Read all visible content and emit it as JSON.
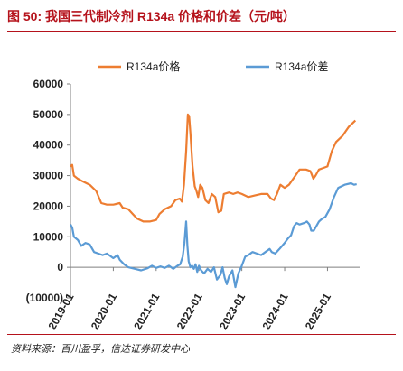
{
  "figure": {
    "title": "图 50:  我国三代制冷剂 R134a 价格和价差（元/吨）",
    "source": "资料来源：百川盈孚，信达证券研发中心"
  },
  "chart_data": {
    "type": "line",
    "ylabel": "",
    "xlabel": "",
    "ylim": [
      -10000,
      60000
    ],
    "y_ticks": [
      "60000",
      "50000",
      "40000",
      "30000",
      "20000",
      "10000",
      "0",
      "(10000)"
    ],
    "y_tick_values": [
      60000,
      50000,
      40000,
      30000,
      20000,
      10000,
      0,
      -10000
    ],
    "x_ticks": [
      "2019-01",
      "2020-01",
      "2021-01",
      "2022-01",
      "2023-01",
      "2024-01",
      "2025-01"
    ],
    "x_tick_values": [
      2019.0,
      2020.0,
      2021.0,
      2022.0,
      2023.0,
      2024.0,
      2025.0
    ],
    "xlim": [
      2019.0,
      2025.75
    ],
    "negative_label_color": "#e00000",
    "legend_position": "top",
    "series": [
      {
        "name": "R134a价格",
        "color": "#ed7d31",
        "points": [
          [
            2019.0,
            33000
          ],
          [
            2019.04,
            33500
          ],
          [
            2019.08,
            30000
          ],
          [
            2019.17,
            29000
          ],
          [
            2019.3,
            28000
          ],
          [
            2019.45,
            27000
          ],
          [
            2019.6,
            25000
          ],
          [
            2019.72,
            21000
          ],
          [
            2019.85,
            20500
          ],
          [
            2020.0,
            20500
          ],
          [
            2020.15,
            21000
          ],
          [
            2020.22,
            19500
          ],
          [
            2020.35,
            19000
          ],
          [
            2020.45,
            17500
          ],
          [
            2020.55,
            16000
          ],
          [
            2020.7,
            15000
          ],
          [
            2020.85,
            15000
          ],
          [
            2021.0,
            15500
          ],
          [
            2021.08,
            17500
          ],
          [
            2021.2,
            19000
          ],
          [
            2021.35,
            20000
          ],
          [
            2021.45,
            22000
          ],
          [
            2021.55,
            22500
          ],
          [
            2021.6,
            21500
          ],
          [
            2021.65,
            27000
          ],
          [
            2021.7,
            38000
          ],
          [
            2021.74,
            50000
          ],
          [
            2021.77,
            49500
          ],
          [
            2021.8,
            44000
          ],
          [
            2021.85,
            33000
          ],
          [
            2021.9,
            26500
          ],
          [
            2021.94,
            25000
          ],
          [
            2021.98,
            23000
          ],
          [
            2022.03,
            27000
          ],
          [
            2022.08,
            26000
          ],
          [
            2022.15,
            22000
          ],
          [
            2022.22,
            21000
          ],
          [
            2022.3,
            24000
          ],
          [
            2022.38,
            23000
          ],
          [
            2022.45,
            18000
          ],
          [
            2022.52,
            18500
          ],
          [
            2022.58,
            24000
          ],
          [
            2022.7,
            24500
          ],
          [
            2022.8,
            24000
          ],
          [
            2022.9,
            24500
          ],
          [
            2023.0,
            24000
          ],
          [
            2023.15,
            23000
          ],
          [
            2023.3,
            23500
          ],
          [
            2023.45,
            24000
          ],
          [
            2023.6,
            24000
          ],
          [
            2023.68,
            22500
          ],
          [
            2023.75,
            22000
          ],
          [
            2023.82,
            24000
          ],
          [
            2023.9,
            27000
          ],
          [
            2024.0,
            26000
          ],
          [
            2024.1,
            27000
          ],
          [
            2024.25,
            30000
          ],
          [
            2024.35,
            32000
          ],
          [
            2024.5,
            32000
          ],
          [
            2024.6,
            31500
          ],
          [
            2024.67,
            29000
          ],
          [
            2024.72,
            30000
          ],
          [
            2024.8,
            32000
          ],
          [
            2024.9,
            32500
          ],
          [
            2025.0,
            33000
          ],
          [
            2025.1,
            38000
          ],
          [
            2025.2,
            41000
          ],
          [
            2025.35,
            43000
          ],
          [
            2025.5,
            46000
          ],
          [
            2025.65,
            48000
          ]
        ]
      },
      {
        "name": "R134a价差",
        "color": "#5b9bd5",
        "points": [
          [
            2019.0,
            14000
          ],
          [
            2019.04,
            13000
          ],
          [
            2019.08,
            10000
          ],
          [
            2019.17,
            9000
          ],
          [
            2019.25,
            7000
          ],
          [
            2019.35,
            8000
          ],
          [
            2019.45,
            7500
          ],
          [
            2019.55,
            5000
          ],
          [
            2019.65,
            4500
          ],
          [
            2019.75,
            4000
          ],
          [
            2019.85,
            4500
          ],
          [
            2020.0,
            3000
          ],
          [
            2020.1,
            4000
          ],
          [
            2020.15,
            2500
          ],
          [
            2020.25,
            1000
          ],
          [
            2020.35,
            0
          ],
          [
            2020.5,
            -500
          ],
          [
            2020.65,
            -1000
          ],
          [
            2020.8,
            -300
          ],
          [
            2020.9,
            500
          ],
          [
            2021.0,
            -200
          ],
          [
            2021.1,
            300
          ],
          [
            2021.2,
            -200
          ],
          [
            2021.3,
            500
          ],
          [
            2021.4,
            -500
          ],
          [
            2021.5,
            500
          ],
          [
            2021.56,
            1000
          ],
          [
            2021.62,
            3500
          ],
          [
            2021.66,
            8000
          ],
          [
            2021.7,
            15000
          ],
          [
            2021.73,
            7000
          ],
          [
            2021.76,
            2000
          ],
          [
            2021.8,
            0
          ],
          [
            2021.84,
            500
          ],
          [
            2021.88,
            -500
          ],
          [
            2021.92,
            1000
          ],
          [
            2021.96,
            -1500
          ],
          [
            2022.0,
            500
          ],
          [
            2022.05,
            -1000
          ],
          [
            2022.12,
            -2000
          ],
          [
            2022.2,
            -500
          ],
          [
            2022.28,
            -1500
          ],
          [
            2022.35,
            0
          ],
          [
            2022.42,
            -4000
          ],
          [
            2022.5,
            -2500
          ],
          [
            2022.55,
            0
          ],
          [
            2022.6,
            -3500
          ],
          [
            2022.65,
            -5500
          ],
          [
            2022.7,
            -3000
          ],
          [
            2022.78,
            -1000
          ],
          [
            2022.85,
            -6500
          ],
          [
            2022.92,
            -2000
          ],
          [
            2023.0,
            500
          ],
          [
            2023.08,
            3500
          ],
          [
            2023.15,
            4000
          ],
          [
            2023.25,
            5000
          ],
          [
            2023.35,
            4500
          ],
          [
            2023.45,
            4000
          ],
          [
            2023.55,
            5000
          ],
          [
            2023.65,
            6000
          ],
          [
            2023.7,
            5000
          ],
          [
            2023.78,
            4500
          ],
          [
            2023.88,
            6000
          ],
          [
            2024.0,
            8000
          ],
          [
            2024.08,
            9500
          ],
          [
            2024.15,
            10500
          ],
          [
            2024.22,
            13500
          ],
          [
            2024.28,
            14500
          ],
          [
            2024.35,
            14000
          ],
          [
            2024.45,
            14500
          ],
          [
            2024.52,
            15000
          ],
          [
            2024.58,
            14000
          ],
          [
            2024.62,
            12000
          ],
          [
            2024.68,
            12000
          ],
          [
            2024.72,
            13000
          ],
          [
            2024.8,
            15000
          ],
          [
            2024.88,
            16000
          ],
          [
            2024.95,
            16500
          ],
          [
            2025.05,
            19000
          ],
          [
            2025.15,
            23000
          ],
          [
            2025.25,
            26000
          ],
          [
            2025.4,
            27000
          ],
          [
            2025.55,
            27500
          ],
          [
            2025.62,
            27000
          ],
          [
            2025.68,
            27200
          ]
        ]
      }
    ]
  }
}
